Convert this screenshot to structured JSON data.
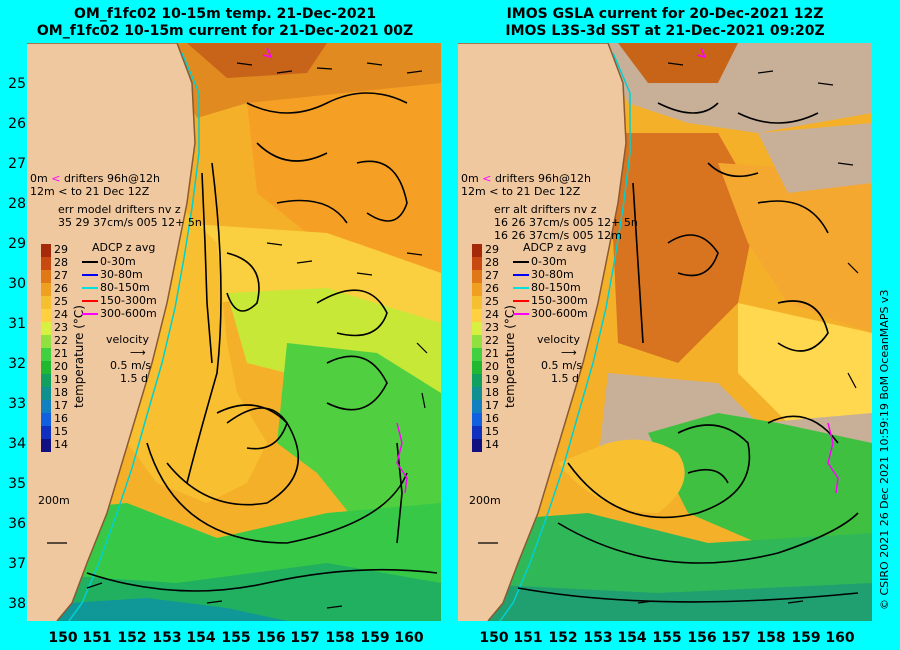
{
  "title_left": {
    "line1": "OM_f1fc02 10-15m temp. 21-Dec-2021",
    "line2": "OM_f1fc02 10-15m current for 21-Dec-2021 00Z"
  },
  "title_right": {
    "line1": "IMOS GSLA current for 20-Dec-2021 12Z",
    "line2": "IMOS L3S-3d SST at 21-Dec-2021 09:20Z"
  },
  "y_axis_labels": [
    "25",
    "26",
    "27",
    "28",
    "29",
    "30",
    "31",
    "32",
    "33",
    "34",
    "35",
    "36",
    "37",
    "38"
  ],
  "x_axis_labels": [
    "150",
    "151",
    "152",
    "153",
    "154",
    "155",
    "156",
    "157",
    "158",
    "159",
    "160"
  ],
  "left": {
    "drifters_line1": "0m",
    "drifters_line1b": "drifters 96h@12h",
    "drifters_line2": "12m",
    "drifters_line2b": "to 21 Dec 12Z",
    "err_title": "err model drifters nv z",
    "err_values": "35 29 37cm/s 005 12+ 5n"
  },
  "right": {
    "drifters_line1": "0m",
    "drifters_line1b": "drifters 96h@12h",
    "drifters_line2": "12m",
    "drifters_line2b": "to 21 Dec 12Z",
    "err_title": "err alt drifters nv z",
    "err_values1": "16 26 37cm/s 005 12+ 5n",
    "err_values2": "16 26 37cm/s 005 12m"
  },
  "colorbar": {
    "title": "temperature (°C)",
    "ticks": [
      "29",
      "28",
      "27",
      "26",
      "25",
      "24",
      "23",
      "22",
      "21",
      "20",
      "19",
      "18",
      "17",
      "16",
      "15",
      "14"
    ],
    "colors": [
      "#a52a0a",
      "#c84a10",
      "#e07818",
      "#f0a020",
      "#f5c030",
      "#ffd040",
      "#d8f040",
      "#90e040",
      "#40d040",
      "#20b830",
      "#10a060",
      "#109090",
      "#1080c0",
      "#1060e0",
      "#1030c0",
      "#101080"
    ]
  },
  "adcp_legend": {
    "title": "ADCP z avg",
    "items": [
      {
        "label": "0-30m",
        "color": "#000000"
      },
      {
        "label": "30-80m",
        "color": "#0000ff"
      },
      {
        "label": "80-150m",
        "color": "#00e0e0"
      },
      {
        "label": "150-300m",
        "color": "#ff0000"
      },
      {
        "label": "300-600m",
        "color": "#ff00ff"
      }
    ]
  },
  "velocity": {
    "title": "velocity",
    "speed": "0.5 m/s",
    "time": "1.5 d"
  },
  "contour_label": "200m",
  "credit": "© CSIRO 2021  26 Dec 2021 10:59:19 BoM OceanMAPS v3"
}
